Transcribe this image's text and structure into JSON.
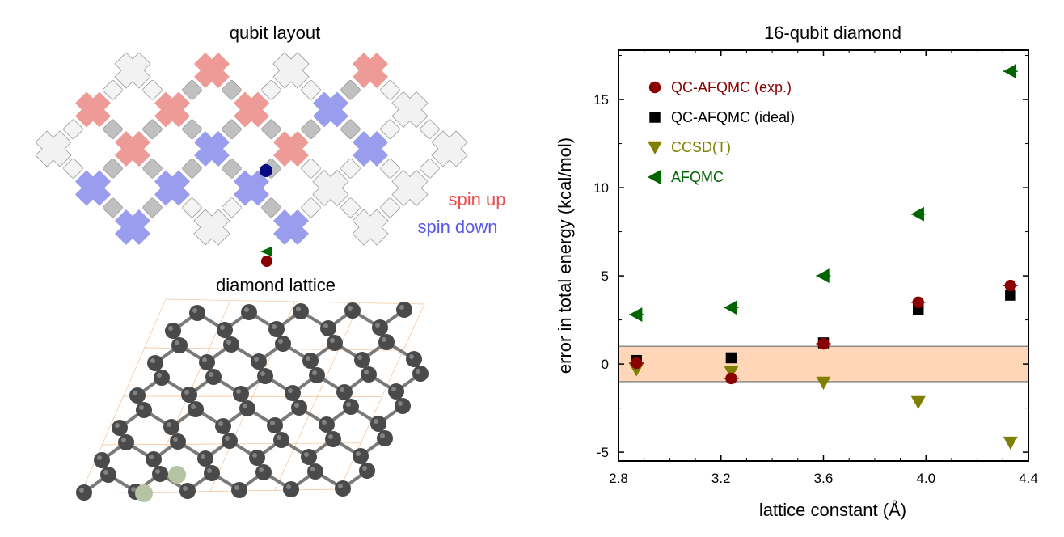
{
  "left_panel": {
    "qubit_title": "qubit layout",
    "spin_up_label": "spin up",
    "spin_down_label": "spin down",
    "lattice_title": "diamond lattice",
    "colors": {
      "spin_up": "#ee9a96",
      "spin_down": "#9a9ced",
      "inactive": "#f2f2f2",
      "coupler_inactive": "#f4f4f4",
      "coupler_active": "#c0c0c0",
      "spin_up_text": "#ef4c4c",
      "spin_down_text": "#5858e8",
      "marker_dot": "#0a0a80",
      "atom": "#4a4a4a",
      "atom_highlight": "#b7c4a4",
      "bond": "#7a7a7a",
      "cell": "#f1a466"
    },
    "grid_rows": [
      [
        0,
        0,
        1,
        0,
        1,
        0,
        0,
        0
      ],
      [
        0,
        1,
        1,
        1,
        2,
        0,
        0,
        0
      ],
      [
        0,
        1,
        2,
        1,
        2,
        0,
        0,
        0
      ],
      [
        1,
        2,
        2,
        2,
        0,
        0,
        0,
        0
      ],
      [
        0,
        2,
        0,
        2,
        0,
        0,
        0,
        0
      ]
    ]
  },
  "chart_data": {
    "type": "scatter",
    "title": "16-qubit diamond",
    "xlabel": "lattice constant (Å)",
    "ylabel": "error in total energy (kcal/mol)",
    "xlim": [
      2.8,
      4.4
    ],
    "ylim": [
      -5.5,
      17.8
    ],
    "xticks": [
      2.8,
      3.2,
      3.6,
      4.0,
      4.4
    ],
    "xtick_labels": [
      "2.8",
      "3.2",
      "3.6",
      "4.0",
      "4.4"
    ],
    "yticks": [
      -5,
      0,
      5,
      10,
      15
    ],
    "ytick_labels": [
      "-5",
      "0",
      "5",
      "10",
      "15"
    ],
    "band": {
      "ymin": -1,
      "ymax": 1,
      "fill": "#ffd6b8",
      "edge": "#8a8a8a"
    },
    "legend_position": "top-left",
    "grid": false,
    "series": [
      {
        "name": "QC-AFQMC (exp.)",
        "marker": "circle",
        "color": "#8b0000",
        "x": [
          2.87,
          3.24,
          3.6,
          3.97,
          4.33
        ],
        "y": [
          0.05,
          -0.82,
          1.15,
          3.5,
          4.45
        ],
        "err": [
          0.1,
          0.08,
          0.12,
          0.1,
          0.08
        ]
      },
      {
        "name": "QC-AFQMC (ideal)",
        "marker": "square",
        "color": "#000000",
        "x": [
          2.87,
          3.24,
          3.6,
          3.97,
          4.33
        ],
        "y": [
          0.2,
          0.35,
          1.2,
          3.1,
          3.9
        ],
        "err": []
      },
      {
        "name": "CCSD(T)",
        "marker": "triangle-down",
        "color": "#808000",
        "x": [
          2.87,
          3.24,
          3.6,
          3.97,
          4.33
        ],
        "y": [
          -0.3,
          -0.45,
          -1.05,
          -2.15,
          -4.45
        ],
        "err": []
      },
      {
        "name": "AFQMC",
        "marker": "triangle-left",
        "color": "#006400",
        "x": [
          2.87,
          3.24,
          3.6,
          3.97,
          4.33
        ],
        "y": [
          2.8,
          3.2,
          5.0,
          8.5,
          16.6
        ],
        "err": [
          0.08,
          0.1,
          0.08,
          0.1,
          0.12
        ]
      }
    ]
  }
}
